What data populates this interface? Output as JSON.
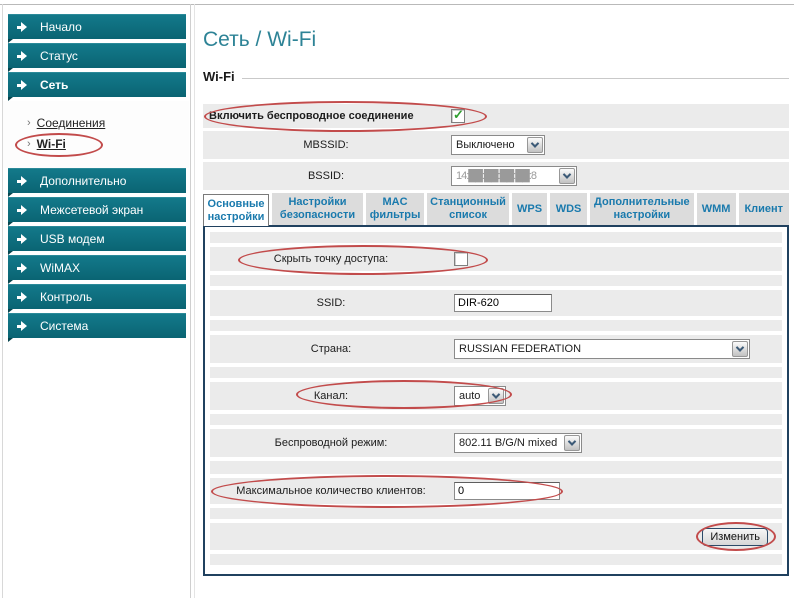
{
  "page": {
    "title": "Сеть / Wi-Fi",
    "section": "Wi-Fi"
  },
  "colors": {
    "sidebar_teal": "#0d6e7d",
    "title_teal": "#2d8396",
    "tab_blue": "#1a7aad",
    "panel_border_navy": "#20415f",
    "annotation_red": "#c24b4b",
    "check_green": "#2f9e2f",
    "row_gray": "#ebebeb"
  },
  "sidebar": {
    "items": [
      {
        "label": "Начало"
      },
      {
        "label": "Статус"
      },
      {
        "label": "Сеть",
        "active": true
      },
      {
        "label": "Дополнительно"
      },
      {
        "label": "Межсетевой экран"
      },
      {
        "label": "USB модем"
      },
      {
        "label": "WiMAX"
      },
      {
        "label": "Контроль"
      },
      {
        "label": "Система"
      }
    ],
    "submenu": [
      {
        "label": "Соединения"
      },
      {
        "label": "Wi-Fi",
        "active": true,
        "annotated": true
      }
    ]
  },
  "top_form": {
    "enable_label": "Включить беспроводное соединение",
    "enable_checked": true,
    "mbssid_label": "MBSSID:",
    "mbssid_value": "Выключено",
    "bssid_label": "BSSID:",
    "bssid_value": "14:██:██:██:██:8"
  },
  "tabs": [
    {
      "label": "Основные настройки",
      "active": true
    },
    {
      "label": "Настройки безопасности"
    },
    {
      "label": "MAC фильтры"
    },
    {
      "label": "Станционный список"
    },
    {
      "label": "WPS"
    },
    {
      "label": "WDS"
    },
    {
      "label": "Дополнительные настройки"
    },
    {
      "label": "WMM"
    },
    {
      "label": "Клиент"
    }
  ],
  "form": {
    "hide_ap_label": "Скрыть точку доступа:",
    "hide_ap_checked": false,
    "ssid_label": "SSID:",
    "ssid_value": "DIR-620",
    "country_label": "Страна:",
    "country_value": "RUSSIAN FEDERATION",
    "channel_label": "Канал:",
    "channel_value": "auto",
    "mode_label": "Беспроводной режим:",
    "mode_value": "802.11 B/G/N mixed",
    "max_clients_label": "Максимальное количество клиентов:",
    "max_clients_value": "0",
    "submit_label": "Изменить"
  }
}
